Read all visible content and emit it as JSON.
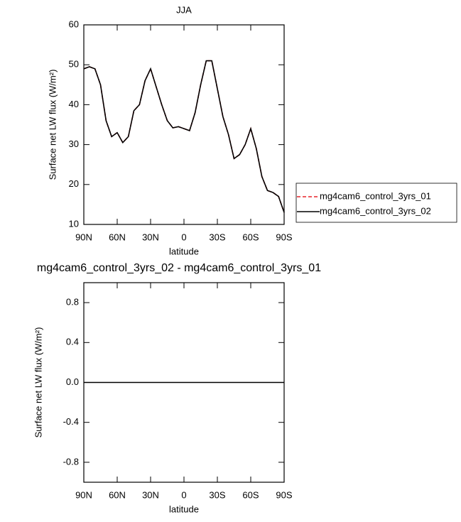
{
  "chart_data": [
    {
      "type": "line",
      "title": "JJA",
      "xlabel": "latitude",
      "ylabel": "Surface net LW flux (W/m²)",
      "x": [
        90,
        85,
        80,
        75,
        70,
        65,
        60,
        55,
        50,
        45,
        40,
        35,
        30,
        25,
        20,
        15,
        10,
        5,
        0,
        -5,
        -10,
        -15,
        -20,
        -25,
        -30,
        -35,
        -40,
        -45,
        -50,
        -55,
        -60,
        -65,
        -70,
        -75,
        -80,
        -85,
        -90
      ],
      "xlim": [
        90,
        -90
      ],
      "xticks": [
        {
          "value": 90,
          "label": "90N"
        },
        {
          "value": 60,
          "label": "60N"
        },
        {
          "value": 30,
          "label": "30N"
        },
        0,
        {
          "value": -30,
          "label": "30S"
        },
        {
          "value": -60,
          "label": "60S"
        },
        {
          "value": -90,
          "label": "90S"
        }
      ],
      "ylim": [
        10,
        60
      ],
      "yticks": [
        10,
        20,
        30,
        40,
        50,
        60
      ],
      "series": [
        {
          "name": "mg4cam6_control_3yrs_01",
          "color": "#e8232a",
          "dash": true,
          "values": [
            49,
            49.5,
            49,
            45,
            36,
            32,
            33,
            30.5,
            32,
            38.5,
            40,
            46,
            49,
            44.5,
            40,
            36,
            34.2,
            34.5,
            34,
            33.5,
            38,
            45,
            51,
            51,
            44,
            37,
            32.5,
            26.5,
            27.5,
            30,
            34,
            29,
            22,
            18.5,
            18,
            17,
            13
          ]
        },
        {
          "name": "mg4cam6_control_3yrs_02",
          "color": "#000000",
          "dash": false,
          "values": [
            49,
            49.5,
            49,
            45,
            36,
            32,
            33,
            30.5,
            32,
            38.5,
            40,
            46,
            49,
            44.5,
            40,
            36,
            34.2,
            34.5,
            34,
            33.5,
            38,
            45,
            51,
            51,
            44,
            37,
            32.5,
            26.5,
            27.5,
            30,
            34,
            29,
            22,
            18.5,
            18,
            17,
            13
          ]
        }
      ]
    },
    {
      "type": "line",
      "title": "mg4cam6_control_3yrs_02 - mg4cam6_control_3yrs_01",
      "xlabel": "latitude",
      "ylabel": "Surface net LW flux (W/m²)",
      "x": [
        90,
        -90
      ],
      "xlim": [
        90,
        -90
      ],
      "xticks": [
        {
          "value": 90,
          "label": "90N"
        },
        {
          "value": 60,
          "label": "60N"
        },
        {
          "value": 30,
          "label": "30N"
        },
        0,
        {
          "value": -30,
          "label": "30S"
        },
        {
          "value": -60,
          "label": "60S"
        },
        {
          "value": -90,
          "label": "90S"
        }
      ],
      "ylim": [
        -1,
        1
      ],
      "yticks": [
        -0.8,
        -0.4,
        {
          "value": 0,
          "label": "0.0"
        },
        0.4,
        0.8
      ],
      "series": [
        {
          "color": "#000000",
          "dash": false,
          "values": [
            0,
            0
          ]
        }
      ]
    }
  ]
}
